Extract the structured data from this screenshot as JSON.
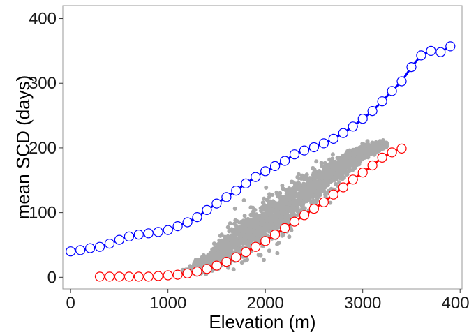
{
  "chart_data": {
    "type": "scatter",
    "title": "",
    "xlabel": "Elevation (m)",
    "ylabel": "mean SCD (days)",
    "xlim": [
      -80,
      4020
    ],
    "ylim": [
      -18,
      420
    ],
    "xticks": [
      0,
      1000,
      2000,
      3000,
      4000
    ],
    "yticks": [
      0,
      100,
      200,
      300,
      400
    ],
    "xtick_labels": [
      "0",
      "1000",
      "2000",
      "3000",
      "4000"
    ],
    "ytick_labels": [
      "0",
      "100",
      "200",
      "300",
      "400"
    ],
    "grid": false,
    "colors": {
      "blue_series": "#0000ff",
      "red_series": "#ff0000",
      "scatter_cloud": "#aaaaaa",
      "axis": "#333333",
      "panel_border": "#999999"
    },
    "series": [
      {
        "name": "blue-line",
        "style": "line-open-circles",
        "color": "#0000ff",
        "x": [
          0,
          100,
          200,
          300,
          400,
          500,
          600,
          700,
          800,
          900,
          1000,
          1100,
          1200,
          1300,
          1400,
          1500,
          1600,
          1700,
          1800,
          1900,
          2000,
          2100,
          2200,
          2300,
          2400,
          2500,
          2600,
          2700,
          2800,
          2900,
          3000,
          3100,
          3200,
          3300,
          3400,
          3500,
          3600,
          3700,
          3800,
          3900
        ],
        "values": [
          40,
          42,
          45,
          47,
          52,
          58,
          63,
          66,
          68,
          70,
          73,
          79,
          85,
          93,
          104,
          114,
          124,
          134,
          145,
          155,
          164,
          172,
          180,
          190,
          196,
          201,
          207,
          214,
          223,
          233,
          245,
          257,
          272,
          288,
          303,
          325,
          343,
          350,
          348,
          357
        ]
      },
      {
        "name": "red-line",
        "style": "line-open-circles",
        "color": "#ff0000",
        "x": [
          300,
          400,
          500,
          600,
          700,
          800,
          900,
          1000,
          1100,
          1200,
          1300,
          1400,
          1500,
          1600,
          1700,
          1800,
          1900,
          2000,
          2100,
          2200,
          2300,
          2400,
          2500,
          2600,
          2700,
          2800,
          2900,
          3000,
          3100,
          3200,
          3300,
          3400
        ],
        "values": [
          1,
          1,
          1,
          1,
          1,
          1,
          2,
          3,
          4,
          6,
          9,
          13,
          18,
          24,
          31,
          39,
          47,
          56,
          66,
          76,
          86,
          96,
          106,
          116,
          128,
          139,
          151,
          162,
          173,
          185,
          193,
          199
        ]
      },
      {
        "name": "gray-scatter-cloud",
        "style": "points",
        "color": "#aaaaaa",
        "x": [
          900,
          1000,
          1100,
          1200,
          1300,
          1400,
          1500,
          1600,
          1700,
          1800,
          1900,
          2000,
          2100,
          2200,
          2300,
          2400,
          2500,
          2600,
          2700,
          2800,
          2900,
          3000,
          3100,
          3200,
          3250
        ],
        "values": [
          2,
          4,
          6,
          10,
          16,
          23,
          32,
          42,
          53,
          63,
          72,
          82,
          92,
          103,
          115,
          128,
          140,
          152,
          163,
          174,
          185,
          193,
          199,
          203,
          205
        ],
        "spread": [
          2,
          3,
          4,
          6,
          10,
          14,
          20,
          25,
          28,
          30,
          31,
          31,
          31,
          30,
          29,
          27,
          25,
          22,
          19,
          16,
          13,
          10,
          8,
          6,
          4
        ],
        "count": 2400
      }
    ]
  }
}
